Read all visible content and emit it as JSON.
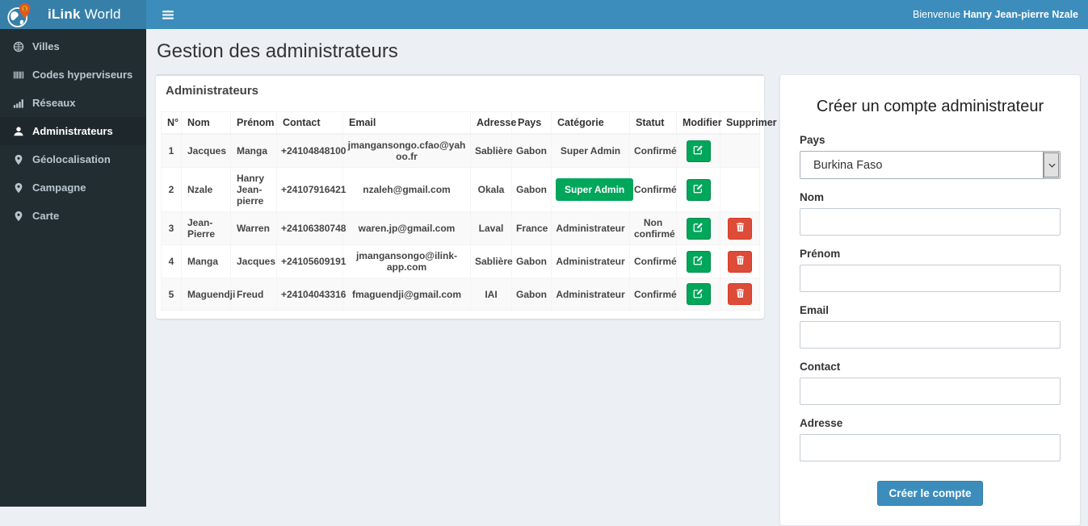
{
  "brand": {
    "name_bold": "iLink",
    "name_rest": " World",
    "logo": "globe-pin-logo"
  },
  "topbar": {
    "welcome_prefix": "Bienvenue ",
    "user_name": "Hanry Jean-pierre Nzale"
  },
  "sidebar": {
    "items": [
      {
        "label": "Villes",
        "icon": "globe-icon",
        "active": false
      },
      {
        "label": "Codes hyperviseurs",
        "icon": "barcode-icon",
        "active": false
      },
      {
        "label": "Réseaux",
        "icon": "signal-icon",
        "active": false
      },
      {
        "label": "Administrateurs",
        "icon": "user-icon",
        "active": true
      },
      {
        "label": "Géolocalisation",
        "icon": "map-marker-icon",
        "active": false
      },
      {
        "label": "Campagne",
        "icon": "map-marker-icon",
        "active": false
      },
      {
        "label": "Carte",
        "icon": "map-marker-icon",
        "active": false
      }
    ]
  },
  "page": {
    "title": "Gestion des administrateurs"
  },
  "table_panel": {
    "title": "Administrateurs",
    "columns": [
      "N°",
      "Nom",
      "Prénom",
      "Contact",
      "Email",
      "Adresse",
      "Pays",
      "Catégorie",
      "Statut",
      "Modifier",
      "Supprimer"
    ],
    "rows": [
      {
        "num": "1",
        "nom": "Jacques",
        "prenom": "Manga",
        "contact": "+24104848100",
        "email": "jmangansongo.cfao@yahoo.fr",
        "adresse": "Sablière",
        "pays": "Gabon",
        "categorie": "Super Admin",
        "categorie_badge": false,
        "statut": "Confirmé",
        "deletable": false
      },
      {
        "num": "2",
        "nom": "Nzale",
        "prenom": "Hanry Jean-pierre",
        "contact": "+24107916421",
        "email": "nzaleh@gmail.com",
        "adresse": "Okala",
        "pays": "Gabon",
        "categorie": "Super Admin",
        "categorie_badge": true,
        "statut": "Confirmé",
        "deletable": false
      },
      {
        "num": "3",
        "nom": "Jean-Pierre",
        "prenom": "Warren",
        "contact": "+24106380748",
        "email": "waren.jp@gmail.com",
        "adresse": "Laval",
        "pays": "France",
        "categorie": "Administrateur",
        "categorie_badge": false,
        "statut": "Non confirmé",
        "deletable": true
      },
      {
        "num": "4",
        "nom": "Manga",
        "prenom": "Jacques",
        "contact": "+24105609191",
        "email": "jmangansongo@ilink-app.com",
        "adresse": "Sablière",
        "pays": "Gabon",
        "categorie": "Administrateur",
        "categorie_badge": false,
        "statut": "Confirmé",
        "deletable": true
      },
      {
        "num": "5",
        "nom": "Maguendji",
        "prenom": "Freud",
        "contact": "+24104043316",
        "email": "fmaguendji@gmail.com",
        "adresse": "IAI",
        "pays": "Gabon",
        "categorie": "Administrateur",
        "categorie_badge": false,
        "statut": "Confirmé",
        "deletable": true
      }
    ],
    "edit_action": "Modifier",
    "delete_action": "Supprimer"
  },
  "form": {
    "title": "Créer un compte administrateur",
    "fields": [
      {
        "label": "Pays",
        "type": "select",
        "value": "Burkina Faso",
        "placeholder": ""
      },
      {
        "label": "Nom",
        "type": "text",
        "value": "",
        "placeholder": ""
      },
      {
        "label": "Prénom",
        "type": "text",
        "value": "",
        "placeholder": ""
      },
      {
        "label": "Email",
        "type": "text",
        "value": "",
        "placeholder": ""
      },
      {
        "label": "Contact",
        "type": "text",
        "value": "",
        "placeholder": ""
      },
      {
        "label": "Adresse",
        "type": "text",
        "value": "",
        "placeholder": ""
      }
    ],
    "submit_label": "Créer le compte"
  },
  "colors": {
    "navbar_blue": "#3c8dbc",
    "logo_blue": "#367fa9",
    "sidebar_dark": "#222d32",
    "sidebar_active": "#1e282c",
    "success_green": "#00a65a",
    "danger_red": "#dd4b39",
    "page_bg": "#ecf0f5"
  }
}
